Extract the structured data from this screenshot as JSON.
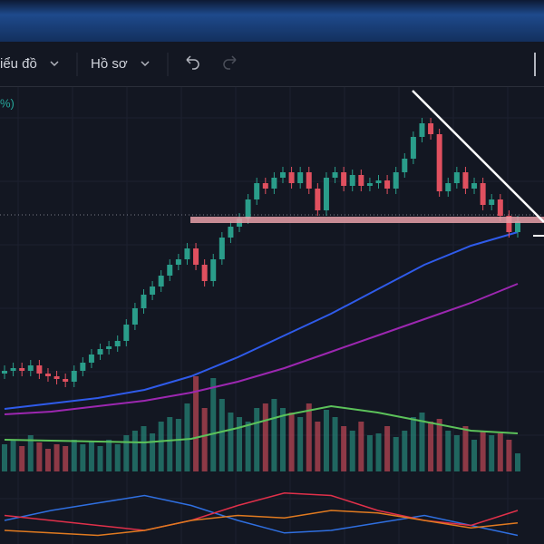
{
  "toolbar": {
    "chart_menu": "iểu đồ",
    "profile_menu": "Hồ sơ"
  },
  "legend_fragment": "%)",
  "chart_data": {
    "type": "candlestick",
    "up_color": "#2a9d8a",
    "down_color": "#e0505f",
    "open": [
      16,
      17,
      18,
      17,
      19,
      16,
      15,
      14,
      13,
      17,
      20,
      23,
      25,
      26,
      28,
      34,
      40,
      45,
      48,
      52,
      56,
      58,
      62,
      56,
      50,
      58,
      66,
      70,
      73,
      80,
      86,
      84,
      88,
      90,
      86,
      90,
      84,
      76,
      88,
      90,
      85,
      89,
      85,
      86,
      87,
      84,
      90,
      95,
      103,
      108,
      104,
      83,
      86,
      90,
      84,
      86,
      78,
      80,
      74,
      68
    ],
    "high": [
      19,
      20,
      20,
      21,
      21,
      18,
      17,
      16,
      19,
      22,
      25,
      27,
      28,
      30,
      36,
      42,
      47,
      50,
      54,
      58,
      60,
      64,
      64,
      58,
      60,
      68,
      72,
      75,
      82,
      88,
      88,
      90,
      92,
      92,
      92,
      92,
      86,
      90,
      92,
      92,
      91,
      91,
      88,
      89,
      89,
      92,
      97,
      105,
      110,
      110,
      106,
      88,
      92,
      92,
      88,
      88,
      82,
      82,
      76,
      74
    ],
    "low": [
      14,
      15,
      15,
      15,
      14,
      13,
      12,
      11,
      11,
      15,
      18,
      21,
      23,
      24,
      26,
      32,
      38,
      43,
      46,
      50,
      54,
      56,
      54,
      48,
      48,
      56,
      64,
      68,
      71,
      78,
      82,
      82,
      86,
      84,
      84,
      82,
      74,
      74,
      86,
      83,
      83,
      83,
      83,
      84,
      82,
      82,
      88,
      93,
      101,
      102,
      81,
      81,
      84,
      82,
      82,
      76,
      76,
      72,
      66,
      66
    ],
    "close": [
      17,
      18,
      17,
      19,
      16,
      15,
      14,
      13,
      17,
      20,
      23,
      25,
      26,
      28,
      34,
      40,
      45,
      48,
      52,
      56,
      58,
      62,
      56,
      50,
      58,
      66,
      70,
      73,
      80,
      86,
      84,
      88,
      90,
      86,
      90,
      84,
      76,
      88,
      90,
      85,
      89,
      85,
      86,
      87,
      84,
      90,
      95,
      103,
      108,
      104,
      83,
      86,
      90,
      84,
      86,
      78,
      80,
      74,
      68,
      72
    ],
    "volume": [
      30,
      35,
      28,
      40,
      32,
      25,
      30,
      28,
      35,
      30,
      33,
      28,
      35,
      30,
      40,
      45,
      50,
      42,
      55,
      60,
      58,
      75,
      105,
      70,
      103,
      80,
      65,
      60,
      55,
      70,
      75,
      80,
      70,
      65,
      60,
      75,
      55,
      68,
      60,
      50,
      45,
      55,
      40,
      42,
      50,
      38,
      45,
      60,
      65,
      55,
      58,
      45,
      40,
      50,
      35,
      45,
      40,
      42,
      35,
      20
    ],
    "moving_averages": [
      {
        "color": "#2f5bea",
        "values": [
          3,
          5,
          7,
          10,
          15,
          22,
          30,
          38,
          47,
          56,
          63,
          68
        ]
      },
      {
        "color": "#9c27b0",
        "values": [
          1,
          2,
          4,
          6,
          9,
          13,
          18,
          24,
          30,
          36,
          42,
          49
        ]
      }
    ],
    "volume_ma": {
      "color": "#5cc25a",
      "values": [
        35,
        34,
        33,
        32,
        36,
        48,
        62,
        72,
        65,
        55,
        45,
        42
      ]
    },
    "oscillator": [
      {
        "color": "#2f6fe0",
        "values": [
          40,
          60,
          75,
          90,
          70,
          40,
          15,
          20,
          35,
          50,
          30,
          10
        ]
      },
      {
        "color": "#e0304a",
        "values": [
          50,
          40,
          30,
          20,
          40,
          70,
          95,
          90,
          60,
          40,
          30,
          60
        ]
      },
      {
        "color": "#e07a20",
        "values": [
          20,
          15,
          10,
          20,
          40,
          50,
          45,
          60,
          55,
          40,
          25,
          35
        ]
      }
    ]
  }
}
